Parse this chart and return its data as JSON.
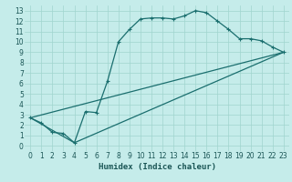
{
  "xlabel": "Humidex (Indice chaleur)",
  "bg_color": "#c5ecea",
  "grid_color": "#a0d4ce",
  "line_color": "#1a6e6e",
  "xlim": [
    -0.5,
    23.5
  ],
  "ylim": [
    -0.5,
    13.5
  ],
  "curve1_x": [
    0,
    1,
    2,
    3,
    4,
    5,
    6,
    7,
    8,
    9,
    10,
    11,
    12,
    13,
    14,
    15,
    16,
    17,
    18,
    19,
    20,
    21,
    22,
    23
  ],
  "curve1_y": [
    2.7,
    2.2,
    1.3,
    1.2,
    0.3,
    3.3,
    3.2,
    6.2,
    10.0,
    11.2,
    12.2,
    12.3,
    12.3,
    12.2,
    12.5,
    13.0,
    12.8,
    12.0,
    11.2,
    10.3,
    10.3,
    10.1,
    9.5,
    9.0
  ],
  "curve2_x": [
    0,
    23
  ],
  "curve2_y": [
    2.7,
    9.0
  ],
  "curve3_x": [
    0,
    4,
    23
  ],
  "curve3_y": [
    2.7,
    0.3,
    9.0
  ],
  "xticks": [
    0,
    1,
    2,
    3,
    4,
    5,
    6,
    7,
    8,
    9,
    10,
    11,
    12,
    13,
    14,
    15,
    16,
    17,
    18,
    19,
    20,
    21,
    22,
    23
  ],
  "yticks": [
    0,
    1,
    2,
    3,
    4,
    5,
    6,
    7,
    8,
    9,
    10,
    11,
    12,
    13
  ],
  "tick_fontsize": 5.5,
  "xlabel_fontsize": 6.5
}
